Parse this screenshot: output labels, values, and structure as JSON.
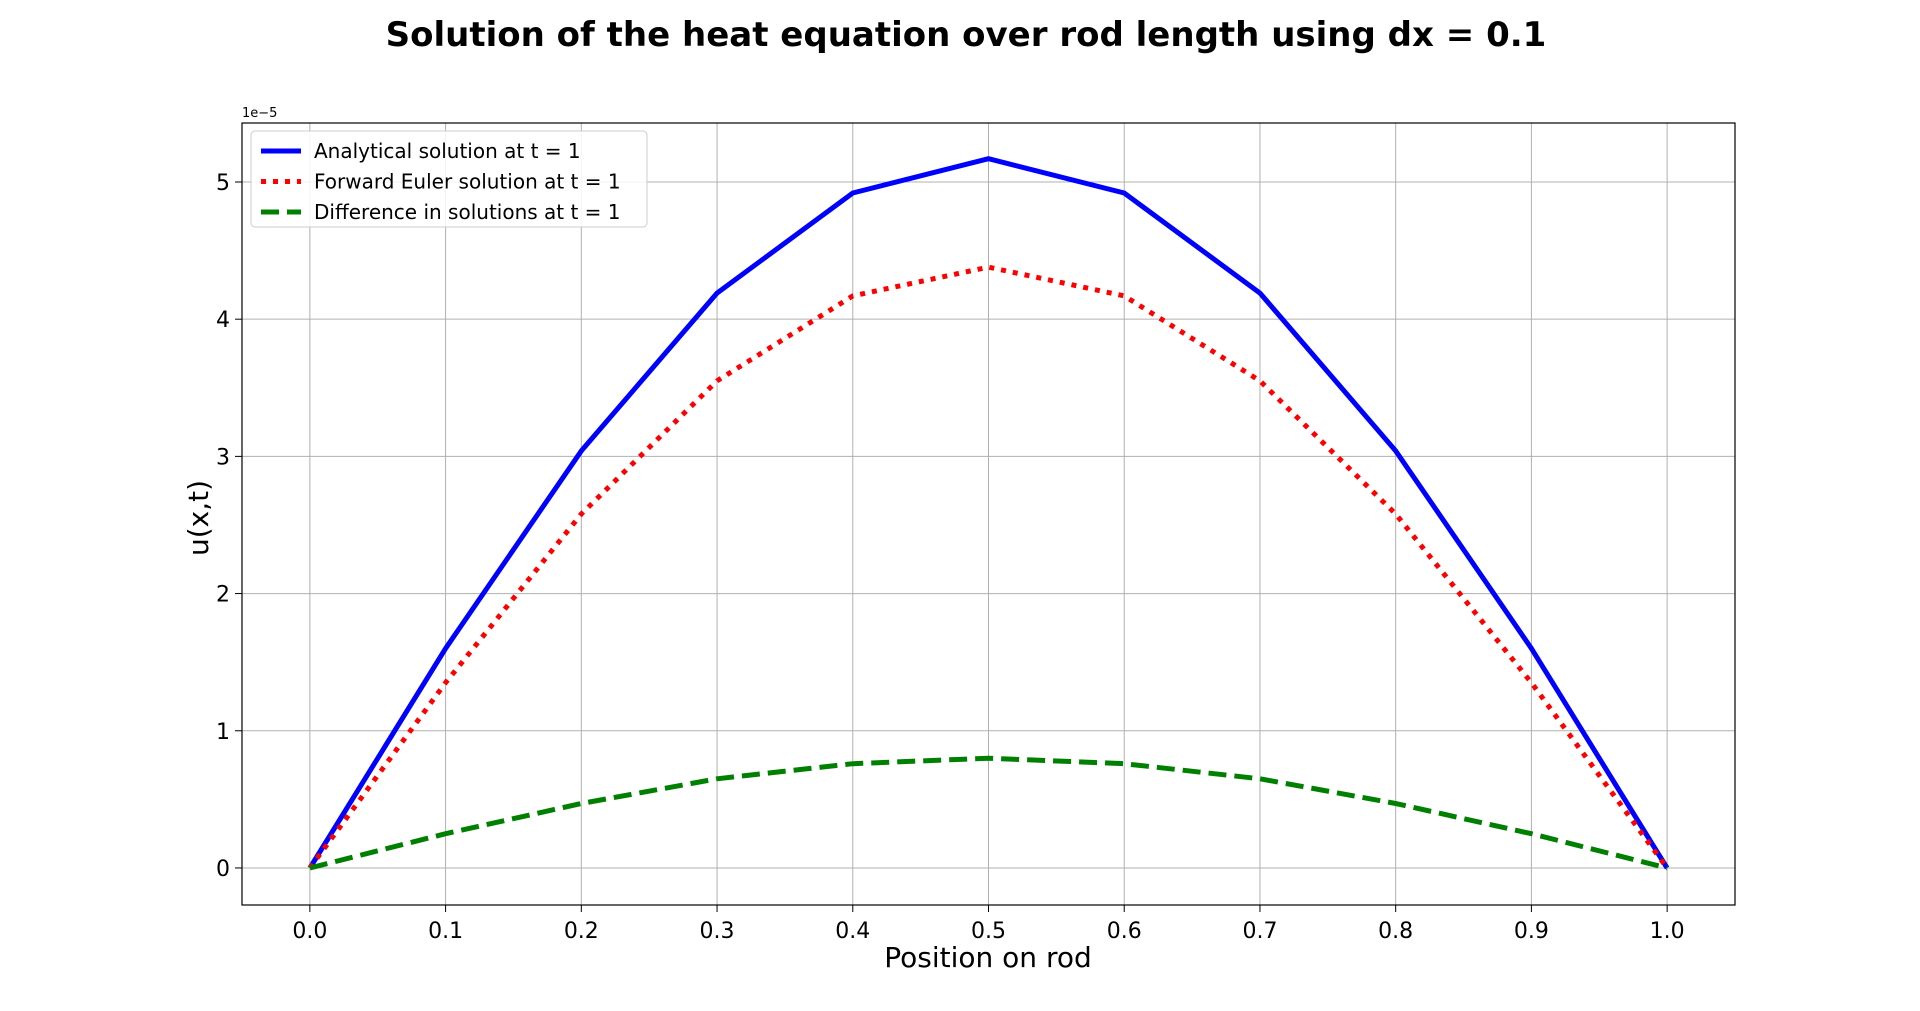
{
  "chart_data": {
    "type": "line",
    "title": "Solution of the heat equation over rod length using dx = 0.1",
    "xlabel": "Position on rod",
    "ylabel": "u(x,t)",
    "y_offset_label": "1e−5",
    "xlim": [
      -0.05,
      1.05
    ],
    "ylim": [
      -0.27,
      5.43
    ],
    "y_scale_factor": 1e-05,
    "grid": true,
    "legend_position": "top-left",
    "x_ticks": [
      0.0,
      0.1,
      0.2,
      0.3,
      0.4,
      0.5,
      0.6,
      0.7,
      0.8,
      0.9,
      1.0
    ],
    "x_tick_labels": [
      "0.0",
      "0.1",
      "0.2",
      "0.3",
      "0.4",
      "0.5",
      "0.6",
      "0.7",
      "0.8",
      "0.9",
      "1.0"
    ],
    "y_ticks": [
      0,
      1,
      2,
      3,
      4,
      5
    ],
    "y_tick_labels": [
      "0",
      "1",
      "2",
      "3",
      "4",
      "5"
    ],
    "x": [
      0.0,
      0.1,
      0.2,
      0.3,
      0.4,
      0.5,
      0.6,
      0.7,
      0.8,
      0.9,
      1.0
    ],
    "series": [
      {
        "name": "Analytical solution at t = 1",
        "style": "solid",
        "color": "#0000ff",
        "values": [
          0,
          1.6,
          3.04,
          4.19,
          4.92,
          5.17,
          4.92,
          4.19,
          3.04,
          1.6,
          0
        ]
      },
      {
        "name": "Forward Euler solution at t = 1",
        "style": "dotted",
        "color": "#ff0000",
        "values": [
          0,
          1.35,
          2.58,
          3.55,
          4.17,
          4.38,
          4.17,
          3.55,
          2.58,
          1.35,
          0
        ]
      },
      {
        "name": "Difference in solutions at t = 1",
        "style": "dashed",
        "color": "#008000",
        "values": [
          0,
          0.25,
          0.47,
          0.65,
          0.76,
          0.8,
          0.76,
          0.65,
          0.47,
          0.25,
          0
        ]
      }
    ]
  }
}
